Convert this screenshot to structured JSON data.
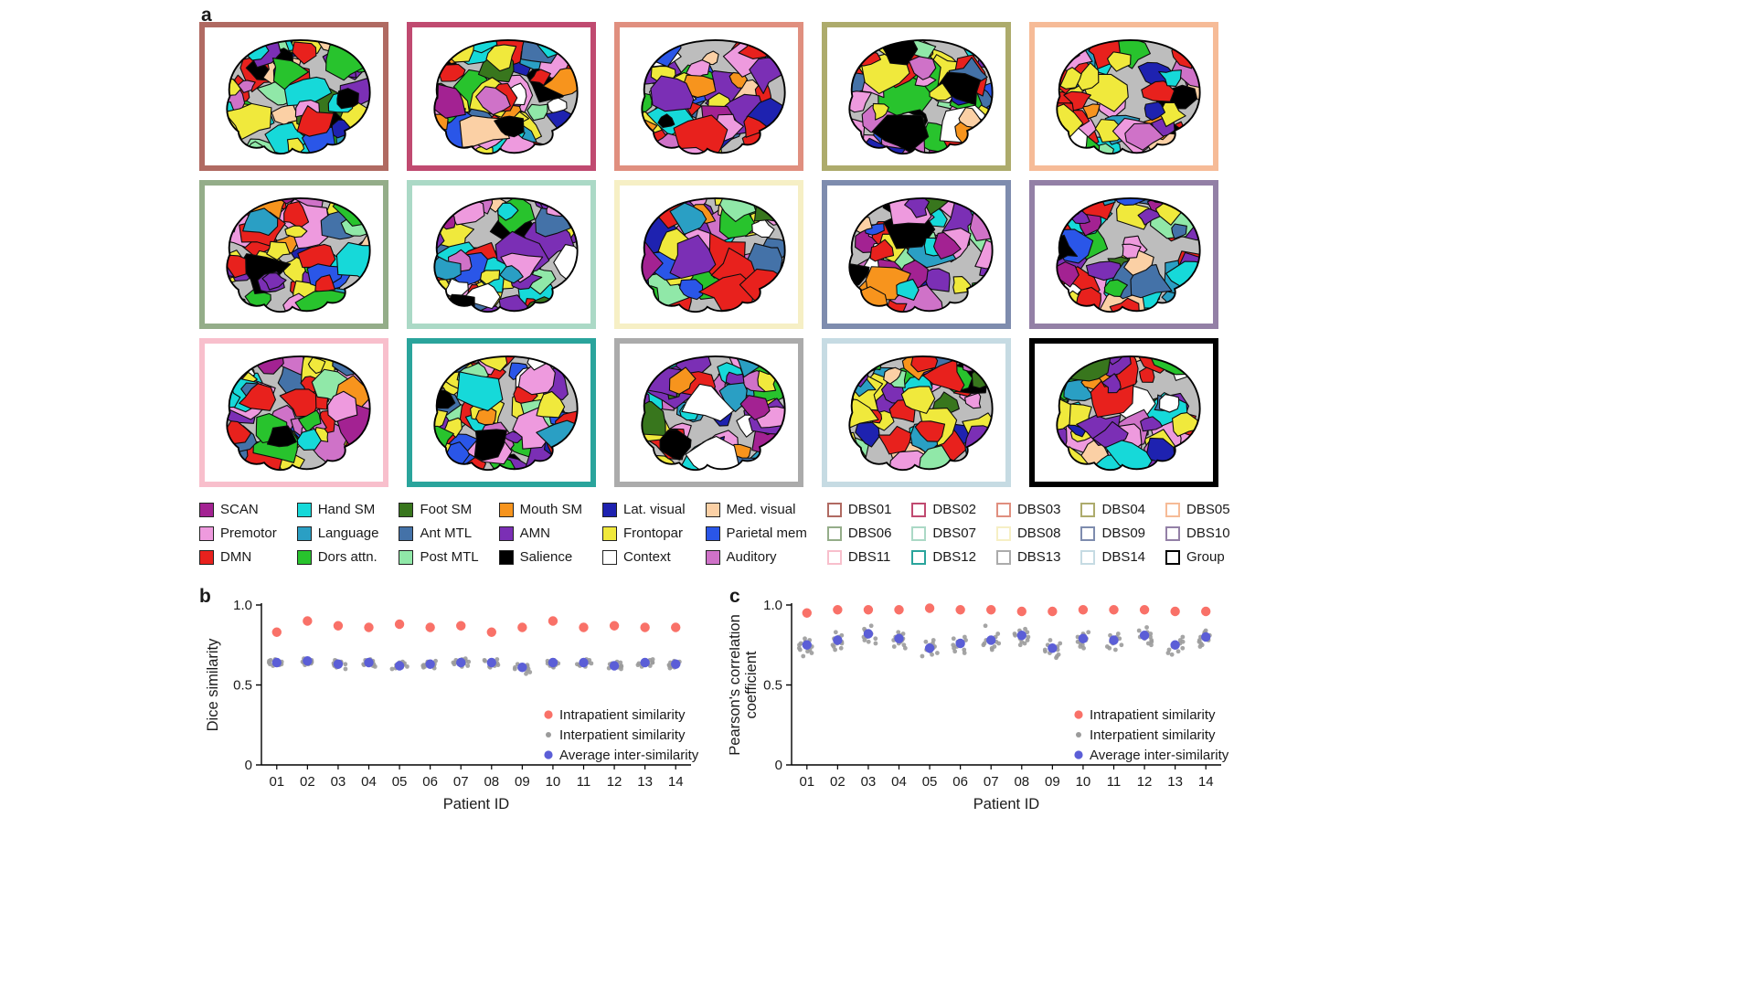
{
  "figure": {
    "panel_a_label": "a",
    "panel_b_label": "b",
    "panel_c_label": "c"
  },
  "panel_a": {
    "brains": [
      {
        "id": "DBS01",
        "border_color": "#b06a62"
      },
      {
        "id": "DBS02",
        "border_color": "#c04a70"
      },
      {
        "id": "DBS03",
        "border_color": "#e08f7f"
      },
      {
        "id": "DBS04",
        "border_color": "#adab6c"
      },
      {
        "id": "DBS05",
        "border_color": "#f6bb97"
      },
      {
        "id": "DBS06",
        "border_color": "#94ad89"
      },
      {
        "id": "DBS07",
        "border_color": "#abd9c6"
      },
      {
        "id": "DBS08",
        "border_color": "#f6efc5"
      },
      {
        "id": "DBS09",
        "border_color": "#7e8cae"
      },
      {
        "id": "DBS10",
        "border_color": "#9380a6"
      },
      {
        "id": "DBS11",
        "border_color": "#f8bfcc"
      },
      {
        "id": "DBS12",
        "border_color": "#2aa49c"
      },
      {
        "id": "DBS13",
        "border_color": "#ababab"
      },
      {
        "id": "DBS14",
        "border_color": "#c6dbe3"
      },
      {
        "id": "Group",
        "border_color": "#000000"
      }
    ]
  },
  "legend": {
    "networks": [
      {
        "label": "SCAN",
        "color": "#a32292"
      },
      {
        "label": "Premotor",
        "color": "#ee9ade"
      },
      {
        "label": "DMN",
        "color": "#e8211d"
      },
      {
        "label": "Hand SM",
        "color": "#16d9d9"
      },
      {
        "label": "Language",
        "color": "#2a9fc4"
      },
      {
        "label": "Dors attn.",
        "color": "#28c32d"
      },
      {
        "label": "Foot SM",
        "color": "#38761d"
      },
      {
        "label": "Ant MTL",
        "color": "#4472a8"
      },
      {
        "label": "Post MTL",
        "color": "#90e8a8"
      },
      {
        "label": "Mouth SM",
        "color": "#f7941d"
      },
      {
        "label": "AMN",
        "color": "#7b2fb5"
      },
      {
        "label": "Salience",
        "color": "#000000"
      },
      {
        "label": "Lat. visual",
        "color": "#1e22b0"
      },
      {
        "label": "Frontopar",
        "color": "#f0e93c"
      },
      {
        "label": "Context",
        "color": "#ffffff"
      },
      {
        "label": "Med. visual",
        "color": "#fbd0a5"
      },
      {
        "label": "Parietal mem",
        "color": "#2a56e8"
      },
      {
        "label": "Auditory",
        "color": "#cf72c8"
      }
    ],
    "patients": [
      {
        "label": "DBS01",
        "color": "#b06a62"
      },
      {
        "label": "DBS02",
        "color": "#c04a70"
      },
      {
        "label": "DBS03",
        "color": "#e08f7f"
      },
      {
        "label": "DBS04",
        "color": "#adab6c"
      },
      {
        "label": "DBS05",
        "color": "#f6bb97"
      },
      {
        "label": "DBS06",
        "color": "#94ad89"
      },
      {
        "label": "DBS07",
        "color": "#abd9c6"
      },
      {
        "label": "DBS08",
        "color": "#f6efc5"
      },
      {
        "label": "DBS09",
        "color": "#7e8cae"
      },
      {
        "label": "DBS10",
        "color": "#9380a6"
      },
      {
        "label": "DBS11",
        "color": "#f8bfcc"
      },
      {
        "label": "DBS12",
        "color": "#2aa49c"
      },
      {
        "label": "DBS13",
        "color": "#ababab"
      },
      {
        "label": "DBS14",
        "color": "#c6dbe3"
      },
      {
        "label": "Group",
        "color": "#000000"
      }
    ]
  },
  "chart_data": [
    {
      "id": "b",
      "type": "scatter",
      "xlabel": "Patient ID",
      "ylabel_lines": [
        "Dice similarity"
      ],
      "ylim": [
        0,
        1
      ],
      "yticks": [
        0,
        0.5,
        1
      ],
      "categories": [
        "01",
        "02",
        "03",
        "04",
        "05",
        "06",
        "07",
        "08",
        "09",
        "10",
        "11",
        "12",
        "13",
        "14"
      ],
      "series": [
        {
          "name": "Intrapatient similarity",
          "kind": "point",
          "color": "#f97168",
          "values": [
            0.83,
            0.9,
            0.87,
            0.86,
            0.88,
            0.86,
            0.87,
            0.83,
            0.86,
            0.9,
            0.86,
            0.87,
            0.86,
            0.86
          ]
        },
        {
          "name": "Interpatient similarity",
          "kind": "cloud",
          "color": "#9b9b9b",
          "points_per_patient": [
            [
              0.62,
              0.63,
              0.635,
              0.64,
              0.64,
              0.645,
              0.65,
              0.655,
              0.66,
              0.625,
              0.645,
              0.63
            ],
            [
              0.625,
              0.635,
              0.64,
              0.645,
              0.65,
              0.655,
              0.66,
              0.665,
              0.63,
              0.64,
              0.65,
              0.645
            ],
            [
              0.6,
              0.615,
              0.62,
              0.63,
              0.635,
              0.64,
              0.645,
              0.65,
              0.655,
              0.625,
              0.64,
              0.61
            ],
            [
              0.615,
              0.625,
              0.63,
              0.635,
              0.64,
              0.645,
              0.65,
              0.655,
              0.66,
              0.62,
              0.64,
              0.63
            ],
            [
              0.6,
              0.61,
              0.615,
              0.62,
              0.625,
              0.63,
              0.635,
              0.64,
              0.645,
              0.605,
              0.625,
              0.615
            ],
            [
              0.605,
              0.615,
              0.62,
              0.625,
              0.63,
              0.635,
              0.64,
              0.645,
              0.65,
              0.61,
              0.63,
              0.62
            ],
            [
              0.615,
              0.625,
              0.635,
              0.64,
              0.645,
              0.65,
              0.655,
              0.66,
              0.665,
              0.62,
              0.64,
              0.63
            ],
            [
              0.61,
              0.62,
              0.63,
              0.635,
              0.64,
              0.645,
              0.65,
              0.655,
              0.66,
              0.615,
              0.635,
              0.625
            ],
            [
              0.57,
              0.59,
              0.6,
              0.605,
              0.61,
              0.615,
              0.62,
              0.625,
              0.63,
              0.58,
              0.61,
              0.6
            ],
            [
              0.61,
              0.62,
              0.625,
              0.63,
              0.635,
              0.64,
              0.645,
              0.65,
              0.655,
              0.615,
              0.635,
              0.625
            ],
            [
              0.615,
              0.625,
              0.63,
              0.635,
              0.64,
              0.645,
              0.65,
              0.655,
              0.66,
              0.62,
              0.64,
              0.63
            ],
            [
              0.6,
              0.61,
              0.615,
              0.62,
              0.625,
              0.63,
              0.635,
              0.64,
              0.645,
              0.605,
              0.625,
              0.615
            ],
            [
              0.615,
              0.625,
              0.63,
              0.635,
              0.64,
              0.645,
              0.65,
              0.655,
              0.66,
              0.62,
              0.64,
              0.63
            ],
            [
              0.605,
              0.615,
              0.62,
              0.625,
              0.63,
              0.635,
              0.64,
              0.645,
              0.65,
              0.61,
              0.63,
              0.62
            ]
          ]
        },
        {
          "name": "Average inter-similarity",
          "kind": "point",
          "color": "#5b5ed7",
          "values": [
            0.64,
            0.65,
            0.63,
            0.64,
            0.62,
            0.63,
            0.64,
            0.64,
            0.61,
            0.64,
            0.64,
            0.62,
            0.64,
            0.63
          ]
        }
      ]
    },
    {
      "id": "c",
      "type": "scatter",
      "xlabel": "Patient ID",
      "ylabel_lines": [
        "Pearson's correlation",
        "coefficient"
      ],
      "ylim": [
        0,
        1
      ],
      "yticks": [
        0,
        0.5,
        1
      ],
      "categories": [
        "01",
        "02",
        "03",
        "04",
        "05",
        "06",
        "07",
        "08",
        "09",
        "10",
        "11",
        "12",
        "13",
        "14"
      ],
      "series": [
        {
          "name": "Intrapatient similarity",
          "kind": "point",
          "color": "#f97168",
          "values": [
            0.95,
            0.97,
            0.97,
            0.97,
            0.98,
            0.97,
            0.97,
            0.96,
            0.96,
            0.97,
            0.97,
            0.97,
            0.96,
            0.96
          ]
        },
        {
          "name": "Interpatient similarity",
          "kind": "cloud",
          "color": "#9b9b9b",
          "points_per_patient": [
            [
              0.68,
              0.7,
              0.71,
              0.72,
              0.73,
              0.74,
              0.75,
              0.76,
              0.77,
              0.78,
              0.79,
              0.72
            ],
            [
              0.72,
              0.73,
              0.74,
              0.75,
              0.76,
              0.77,
              0.78,
              0.79,
              0.8,
              0.81,
              0.83,
              0.76
            ],
            [
              0.76,
              0.77,
              0.78,
              0.79,
              0.8,
              0.81,
              0.82,
              0.83,
              0.84,
              0.85,
              0.87,
              0.8
            ],
            [
              0.73,
              0.74,
              0.75,
              0.76,
              0.77,
              0.78,
              0.79,
              0.8,
              0.81,
              0.82,
              0.83,
              0.78
            ],
            [
              0.68,
              0.69,
              0.7,
              0.71,
              0.72,
              0.73,
              0.74,
              0.75,
              0.76,
              0.77,
              0.78,
              0.72
            ],
            [
              0.7,
              0.71,
              0.72,
              0.73,
              0.74,
              0.75,
              0.76,
              0.77,
              0.78,
              0.79,
              0.8,
              0.75
            ],
            [
              0.72,
              0.73,
              0.74,
              0.75,
              0.76,
              0.77,
              0.78,
              0.79,
              0.8,
              0.82,
              0.87,
              0.76
            ],
            [
              0.75,
              0.76,
              0.77,
              0.78,
              0.79,
              0.8,
              0.81,
              0.82,
              0.83,
              0.84,
              0.85,
              0.8
            ],
            [
              0.67,
              0.68,
              0.69,
              0.7,
              0.71,
              0.72,
              0.73,
              0.74,
              0.75,
              0.76,
              0.78,
              0.72
            ],
            [
              0.73,
              0.74,
              0.75,
              0.76,
              0.77,
              0.78,
              0.79,
              0.8,
              0.81,
              0.82,
              0.83,
              0.78
            ],
            [
              0.72,
              0.73,
              0.74,
              0.75,
              0.76,
              0.77,
              0.78,
              0.79,
              0.8,
              0.81,
              0.82,
              0.77
            ],
            [
              0.75,
              0.76,
              0.77,
              0.78,
              0.79,
              0.8,
              0.81,
              0.82,
              0.83,
              0.84,
              0.86,
              0.8
            ],
            [
              0.69,
              0.7,
              0.71,
              0.72,
              0.73,
              0.74,
              0.75,
              0.76,
              0.77,
              0.78,
              0.8,
              0.74
            ],
            [
              0.74,
              0.75,
              0.76,
              0.77,
              0.78,
              0.79,
              0.8,
              0.81,
              0.82,
              0.83,
              0.84,
              0.78
            ]
          ]
        },
        {
          "name": "Average inter-similarity",
          "kind": "point",
          "color": "#5b5ed7",
          "values": [
            0.75,
            0.78,
            0.82,
            0.79,
            0.73,
            0.76,
            0.78,
            0.81,
            0.73,
            0.79,
            0.78,
            0.81,
            0.75,
            0.8
          ]
        }
      ]
    }
  ]
}
